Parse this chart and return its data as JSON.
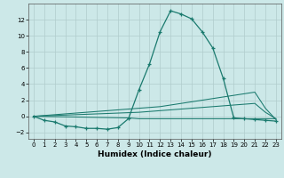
{
  "xlabel": "Humidex (Indice chaleur)",
  "background_color": "#cce8e8",
  "grid_color": "#b0cccc",
  "line_color": "#1a7a6e",
  "xlim": [
    -0.5,
    23.5
  ],
  "ylim": [
    -2.8,
    14.0
  ],
  "x_ticks": [
    0,
    1,
    2,
    3,
    4,
    5,
    6,
    7,
    8,
    9,
    10,
    11,
    12,
    13,
    14,
    15,
    16,
    17,
    18,
    19,
    20,
    21,
    22,
    23
  ],
  "y_ticks": [
    -2,
    0,
    2,
    4,
    6,
    8,
    10,
    12
  ],
  "line1_x": [
    0,
    1,
    2,
    3,
    4,
    5,
    6,
    7,
    8,
    9,
    10,
    11,
    12,
    13,
    14,
    15,
    16,
    17,
    18,
    19,
    20,
    21,
    22,
    23
  ],
  "line1_y": [
    0,
    -0.5,
    -0.7,
    -1.2,
    -1.3,
    -1.5,
    -1.5,
    -1.6,
    -1.4,
    -0.3,
    3.3,
    6.5,
    10.5,
    13.1,
    12.7,
    12.1,
    10.5,
    8.5,
    4.7,
    -0.2,
    -0.3,
    -0.4,
    -0.5,
    -0.6
  ],
  "line2_x": [
    0,
    1,
    2,
    3,
    4,
    5,
    6,
    7,
    8,
    9,
    10,
    11,
    12,
    13,
    14,
    15,
    16,
    17,
    18,
    19,
    20,
    21,
    22,
    23
  ],
  "line2_y": [
    0,
    0.1,
    0.2,
    0.3,
    0.4,
    0.5,
    0.6,
    0.7,
    0.8,
    0.9,
    1.0,
    1.1,
    1.2,
    1.4,
    1.6,
    1.8,
    2.0,
    2.2,
    2.4,
    2.6,
    2.8,
    3.0,
    1.0,
    -0.4
  ],
  "line3_x": [
    0,
    1,
    2,
    3,
    4,
    5,
    6,
    7,
    8,
    9,
    10,
    11,
    12,
    13,
    14,
    15,
    16,
    17,
    18,
    19,
    20,
    21,
    22,
    23
  ],
  "line3_y": [
    0,
    0.05,
    0.1,
    0.15,
    0.2,
    0.25,
    0.3,
    0.35,
    0.4,
    0.45,
    0.5,
    0.6,
    0.7,
    0.8,
    0.9,
    1.0,
    1.1,
    1.2,
    1.3,
    1.4,
    1.5,
    1.6,
    0.5,
    -0.3
  ],
  "line4_x": [
    0,
    9,
    10,
    11,
    12,
    13,
    14,
    15,
    16,
    17,
    18,
    19,
    20,
    21,
    22,
    23
  ],
  "line4_y": [
    0,
    -0.2,
    -0.3,
    -0.3,
    -0.3,
    -0.3,
    -0.3,
    -0.3,
    -0.3,
    -0.3,
    -0.3,
    -0.3,
    -0.3,
    -0.3,
    -0.3,
    -0.3
  ],
  "tick_fontsize": 5.0,
  "xlabel_fontsize": 6.5
}
